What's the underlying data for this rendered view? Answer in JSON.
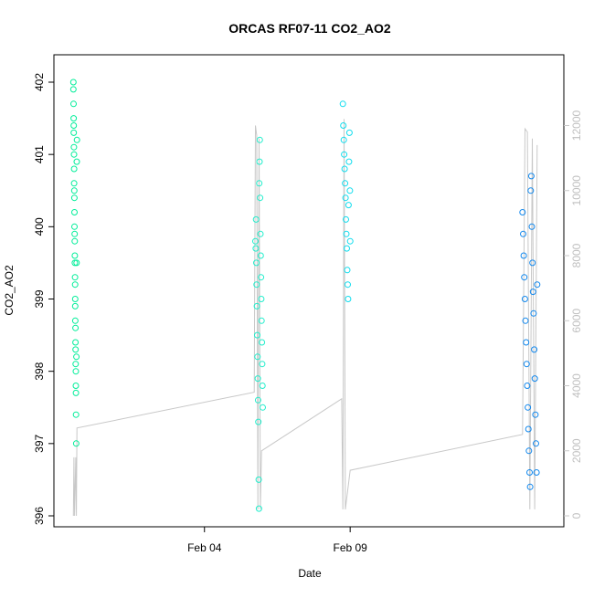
{
  "chart_data": {
    "type": "scatter",
    "title": "ORCAS RF07-11 CO2_AO2",
    "xlabel": "Date",
    "ylabel": "CO2_AO2",
    "x_unit": "date",
    "xlim": [
      "2016-01-29T20:00",
      "2016-02-16T08:00"
    ],
    "ylim": [
      396,
      402
    ],
    "x_ticks": [
      {
        "x": "2016-02-04",
        "label": "Feb 04"
      },
      {
        "x": "2016-02-09",
        "label": "Feb 09"
      }
    ],
    "y_ticks": [
      396,
      397,
      398,
      399,
      400,
      401,
      402
    ],
    "y2_ticks": [
      0,
      2000,
      4000,
      6000,
      8000,
      10000,
      12000
    ],
    "y2lim": [
      -250,
      13000
    ],
    "grid": false,
    "series": [
      {
        "color": "#00ee99",
        "x_range": [
          "2016-01-30T12:00",
          "2016-01-30T15:00"
        ],
        "points": [
          [
            0.0,
            402.0
          ],
          [
            0.02,
            401.9
          ],
          [
            0.05,
            401.7
          ],
          [
            0.08,
            401.5
          ],
          [
            0.1,
            401.4
          ],
          [
            0.12,
            401.3
          ],
          [
            0.15,
            401.1
          ],
          [
            0.18,
            401.0
          ],
          [
            0.2,
            400.8
          ],
          [
            0.22,
            400.6
          ],
          [
            0.25,
            400.5
          ],
          [
            0.28,
            400.4
          ],
          [
            0.3,
            400.2
          ],
          [
            0.32,
            400.0
          ],
          [
            0.35,
            399.9
          ],
          [
            0.38,
            399.8
          ],
          [
            0.4,
            399.6
          ],
          [
            0.42,
            399.5
          ],
          [
            0.45,
            399.3
          ],
          [
            0.48,
            399.2
          ],
          [
            0.5,
            399.0
          ],
          [
            0.52,
            398.9
          ],
          [
            0.55,
            398.7
          ],
          [
            0.58,
            398.6
          ],
          [
            0.6,
            398.4
          ],
          [
            0.62,
            398.3
          ],
          [
            0.65,
            398.1
          ],
          [
            0.68,
            398.0
          ],
          [
            0.7,
            397.8
          ],
          [
            0.72,
            397.7
          ],
          [
            0.75,
            397.4
          ],
          [
            0.8,
            397.0
          ],
          [
            0.85,
            398.2
          ],
          [
            0.9,
            399.5
          ],
          [
            0.95,
            400.9
          ],
          [
            1.0,
            401.2
          ]
        ]
      },
      {
        "color": "#22eecc",
        "x_range": [
          "2016-02-05T18:00",
          "2016-02-06T00:00"
        ],
        "points": [
          [
            0.0,
            399.8
          ],
          [
            0.04,
            399.7
          ],
          [
            0.08,
            400.1
          ],
          [
            0.12,
            399.5
          ],
          [
            0.16,
            399.2
          ],
          [
            0.2,
            398.9
          ],
          [
            0.24,
            398.5
          ],
          [
            0.28,
            398.2
          ],
          [
            0.32,
            397.9
          ],
          [
            0.36,
            397.6
          ],
          [
            0.4,
            397.3
          ],
          [
            0.44,
            396.5
          ],
          [
            0.48,
            396.1
          ],
          [
            0.52,
            400.6
          ],
          [
            0.56,
            400.9
          ],
          [
            0.6,
            401.2
          ],
          [
            0.64,
            400.4
          ],
          [
            0.68,
            399.9
          ],
          [
            0.72,
            399.6
          ],
          [
            0.76,
            399.3
          ],
          [
            0.8,
            399.0
          ],
          [
            0.84,
            398.7
          ],
          [
            0.88,
            398.4
          ],
          [
            0.92,
            398.1
          ],
          [
            0.96,
            397.8
          ],
          [
            1.0,
            397.5
          ]
        ]
      },
      {
        "color": "#11ddee",
        "x_range": [
          "2016-02-08T18:00",
          "2016-02-09T00:00"
        ],
        "points": [
          [
            0.0,
            401.7
          ],
          [
            0.06,
            401.4
          ],
          [
            0.12,
            401.2
          ],
          [
            0.18,
            401.0
          ],
          [
            0.24,
            400.8
          ],
          [
            0.3,
            400.6
          ],
          [
            0.36,
            400.4
          ],
          [
            0.42,
            400.1
          ],
          [
            0.48,
            399.9
          ],
          [
            0.54,
            399.7
          ],
          [
            0.6,
            399.4
          ],
          [
            0.66,
            399.2
          ],
          [
            0.72,
            399.0
          ],
          [
            0.78,
            400.3
          ],
          [
            0.84,
            400.9
          ],
          [
            0.9,
            401.3
          ],
          [
            0.96,
            400.5
          ],
          [
            1.0,
            399.8
          ]
        ]
      },
      {
        "color": "#1188ee",
        "x_range": [
          "2016-02-14T22:00",
          "2016-02-15T10:00"
        ],
        "points": [
          [
            0.0,
            400.2
          ],
          [
            0.04,
            399.9
          ],
          [
            0.08,
            399.6
          ],
          [
            0.12,
            399.3
          ],
          [
            0.16,
            399.0
          ],
          [
            0.2,
            398.7
          ],
          [
            0.24,
            398.4
          ],
          [
            0.28,
            398.1
          ],
          [
            0.32,
            397.8
          ],
          [
            0.36,
            397.5
          ],
          [
            0.4,
            397.2
          ],
          [
            0.44,
            396.9
          ],
          [
            0.48,
            396.6
          ],
          [
            0.52,
            396.4
          ],
          [
            0.56,
            400.5
          ],
          [
            0.6,
            400.7
          ],
          [
            0.64,
            400.0
          ],
          [
            0.68,
            399.5
          ],
          [
            0.72,
            399.1
          ],
          [
            0.76,
            398.8
          ],
          [
            0.8,
            398.3
          ],
          [
            0.84,
            397.9
          ],
          [
            0.88,
            397.4
          ],
          [
            0.92,
            397.0
          ],
          [
            0.96,
            396.6
          ],
          [
            1.0,
            399.2
          ]
        ]
      }
    ],
    "altitude_trace": {
      "color": "#c8c8c8",
      "axis": "right",
      "points": [
        [
          "2016-01-30T12:00",
          0
        ],
        [
          "2016-01-30T12:30",
          1800
        ],
        [
          "2016-01-30T13:00",
          0
        ],
        [
          "2016-01-30T14:00",
          1800
        ],
        [
          "2016-01-30T14:30",
          0
        ],
        [
          "2016-01-30T15:00",
          2700
        ],
        [
          "2016-02-05T17:00",
          3800
        ],
        [
          "2016-02-05T18:00",
          12000
        ],
        [
          "2016-02-05T19:00",
          11700
        ],
        [
          "2016-02-05T20:00",
          200
        ],
        [
          "2016-02-05T21:00",
          11600
        ],
        [
          "2016-02-05T22:00",
          200
        ],
        [
          "2016-02-05T23:00",
          2000
        ],
        [
          "2016-02-08T17:00",
          3600
        ],
        [
          "2016-02-08T18:00",
          200
        ],
        [
          "2016-02-08T19:00",
          12200
        ],
        [
          "2016-02-08T20:00",
          200
        ],
        [
          "2016-02-09T00:00",
          1400
        ],
        [
          "2016-02-14T22:00",
          2500
        ],
        [
          "2016-02-15T00:00",
          11900
        ],
        [
          "2016-02-15T02:00",
          11800
        ],
        [
          "2016-02-15T04:00",
          200
        ],
        [
          "2016-02-15T06:00",
          11600
        ],
        [
          "2016-02-15T08:00",
          200
        ],
        [
          "2016-02-15T10:00",
          11400
        ]
      ]
    }
  }
}
